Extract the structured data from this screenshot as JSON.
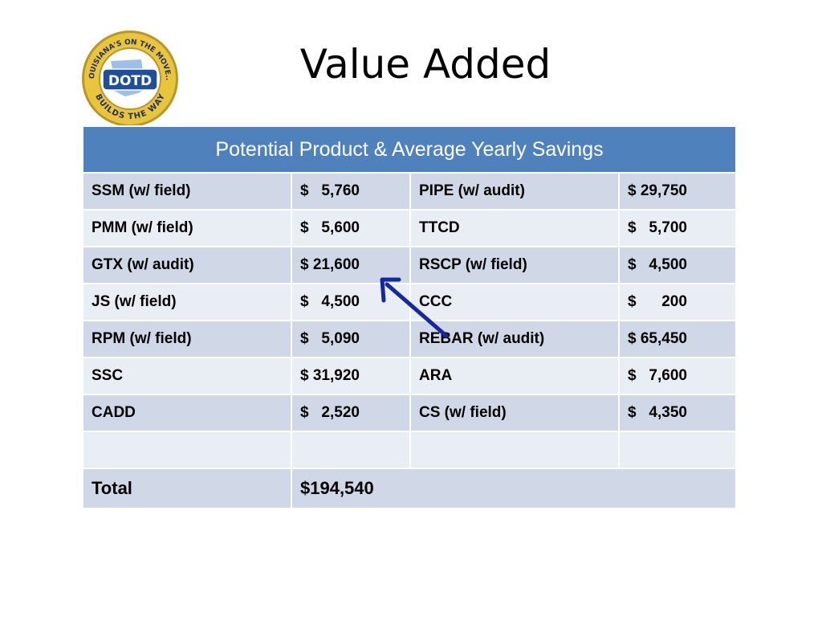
{
  "slide": {
    "title": "Value Added"
  },
  "logo": {
    "icon": "dotd-seal-icon",
    "ring_top_text": "LOUISIANA'S ON THE MOVE...",
    "center_text": "DOTD",
    "ring_bottom_text": "BUILDS THE WAY",
    "colors": {
      "ring": "#e8c53a",
      "center": "#1f4e9c",
      "state": "#9ec0e8"
    }
  },
  "table": {
    "header": "Potential Product & Average Yearly Savings",
    "rows": [
      {
        "product1": "SSM (w/ field)",
        "savings1": "$   5,760",
        "product2": "PIPE (w/ audit)",
        "savings2": "$ 29,750"
      },
      {
        "product1": "PMM (w/ field)",
        "savings1": "$   5,600",
        "product2": "TTCD",
        "savings2": "$   5,700"
      },
      {
        "product1": "GTX (w/ audit)",
        "savings1": "$ 21,600",
        "product2": "RSCP (w/ field)",
        "savings2": "$   4,500"
      },
      {
        "product1": "JS (w/ field)",
        "savings1": "$   4,500",
        "product2": "CCC",
        "savings2": "$      200"
      },
      {
        "product1": "RPM (w/ field)",
        "savings1": "$   5,090",
        "product2": "REBAR (w/ audit)",
        "savings2": "$ 65,450"
      },
      {
        "product1": "SSC",
        "savings1": "$ 31,920",
        "product2": "ARA",
        "savings2": "$   7,600"
      },
      {
        "product1": "CADD",
        "savings1": "$   2,520",
        "product2": "CS (w/ field)",
        "savings2": "$   4,350"
      },
      {
        "product1": "",
        "savings1": "",
        "product2": "",
        "savings2": ""
      }
    ],
    "total_label": "Total",
    "total_value": "$194,540",
    "colors": {
      "header": "#4f81bd",
      "band_dark": "#d0d8e8",
      "band_light": "#e9edf4"
    }
  },
  "annotation": {
    "icon": "arrow-icon",
    "points_to": "$ 21,600",
    "color": "#1428a0"
  }
}
